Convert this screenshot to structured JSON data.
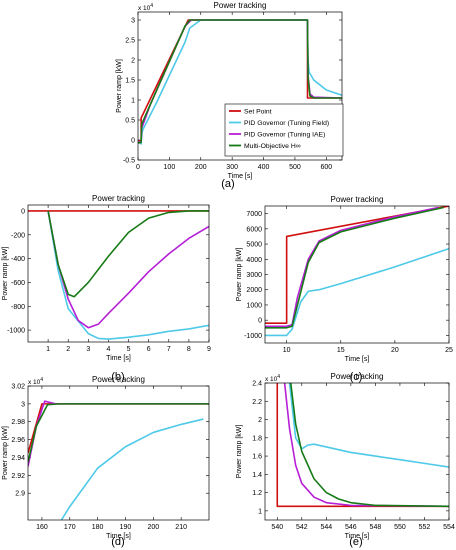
{
  "colors": {
    "set_point": "#d01010",
    "tuning_field": "#4ec9e8",
    "tuning_iae": "#b61fd6",
    "multi_objective": "#167a16"
  },
  "chart_data": [
    {
      "id": "a",
      "type": "line",
      "caption": "(a)",
      "title": "Power tracking",
      "xlabel": "Time [s]",
      "ylabel": "Power ramp [kW]",
      "exponent_label": "x 10^4",
      "xlim": [
        0,
        650
      ],
      "ylim": [
        -0.5,
        3.2
      ],
      "xticks": [
        0,
        100,
        200,
        300,
        400,
        500,
        600
      ],
      "yticks": [
        -0.5,
        0,
        0.5,
        1,
        1.5,
        2,
        2.5,
        3
      ],
      "ytick_labels": [
        "-0.5",
        "0",
        "0.5",
        "1",
        "1.5",
        "2",
        "2.5",
        "3"
      ],
      "legend": {
        "position": "bottom-right",
        "entries": [
          "Set Point",
          "PID Governor (Tuning Field)",
          "PID Governor (Tuning IAE)",
          "Multi-Objective H∞"
        ]
      },
      "series": [
        {
          "name": "Set Point",
          "color_key": "set_point",
          "points": [
            [
              0,
              -0.02
            ],
            [
              10,
              -0.02
            ],
            [
              10,
              0.55
            ],
            [
              160,
              3.0
            ],
            [
              540,
              3.0
            ],
            [
              540,
              1.05
            ],
            [
              650,
              1.05
            ]
          ]
        },
        {
          "name": "PID Governor (Tuning Field)",
          "color_key": "tuning_field",
          "points": [
            [
              0,
              -0.05
            ],
            [
              8,
              -0.05
            ],
            [
              10,
              -0.1
            ],
            [
              12,
              0.15
            ],
            [
              15,
              0.25
            ],
            [
              60,
              0.95
            ],
            [
              150,
              2.45
            ],
            [
              165,
              2.8
            ],
            [
              200,
              3.0
            ],
            [
              540,
              3.0
            ],
            [
              541,
              2.1
            ],
            [
              545,
              1.7
            ],
            [
              560,
              1.5
            ],
            [
              600,
              1.25
            ],
            [
              650,
              1.12
            ]
          ]
        },
        {
          "name": "PID Governor (Tuning IAE)",
          "color_key": "tuning_iae",
          "points": [
            [
              0,
              -0.06
            ],
            [
              8,
              -0.06
            ],
            [
              10,
              -0.05
            ],
            [
              12,
              0.3
            ],
            [
              40,
              0.9
            ],
            [
              150,
              2.85
            ],
            [
              170,
              3.0
            ],
            [
              540,
              3.0
            ],
            [
              542,
              1.6
            ],
            [
              548,
              1.15
            ],
            [
              560,
              1.07
            ],
            [
              650,
              1.05
            ]
          ]
        },
        {
          "name": "Multi-Objective H∞",
          "color_key": "multi_objective",
          "points": [
            [
              0,
              -0.07
            ],
            [
              8,
              -0.07
            ],
            [
              10,
              -0.05
            ],
            [
              12,
              0.4
            ],
            [
              40,
              0.9
            ],
            [
              150,
              2.85
            ],
            [
              165,
              3.0
            ],
            [
              540,
              3.0
            ],
            [
              542,
              1.55
            ],
            [
              548,
              1.1
            ],
            [
              560,
              1.05
            ],
            [
              650,
              1.05
            ]
          ]
        }
      ]
    },
    {
      "id": "b",
      "type": "line",
      "caption": "(b)",
      "title": "Power tracking",
      "xlabel": "Time [s]",
      "ylabel": "Power ramp [kW]",
      "xlim": [
        0,
        9
      ],
      "ylim": [
        -1100,
        50
      ],
      "xticks": [
        1,
        2,
        3,
        4,
        5,
        6,
        7,
        8,
        9
      ],
      "yticks": [
        0,
        -200,
        -400,
        -600,
        -800,
        -1000
      ],
      "ytick_labels": [
        "0",
        "-200",
        "-400",
        "-600",
        "-800",
        "-1000"
      ],
      "series": [
        {
          "color_key": "set_point",
          "points": [
            [
              0,
              0
            ],
            [
              9,
              0
            ]
          ]
        },
        {
          "color_key": "tuning_field",
          "points": [
            [
              1,
              0
            ],
            [
              1.5,
              -500
            ],
            [
              2,
              -820
            ],
            [
              3,
              -1030
            ],
            [
              3.5,
              -1070
            ],
            [
              4,
              -1075
            ],
            [
              5,
              -1060
            ],
            [
              6,
              -1040
            ],
            [
              7,
              -1010
            ],
            [
              8,
              -990
            ],
            [
              9,
              -960
            ]
          ]
        },
        {
          "color_key": "tuning_iae",
          "points": [
            [
              1,
              0
            ],
            [
              1.5,
              -450
            ],
            [
              2,
              -740
            ],
            [
              2.5,
              -920
            ],
            [
              3,
              -980
            ],
            [
              3.5,
              -950
            ],
            [
              4,
              -860
            ],
            [
              5,
              -690
            ],
            [
              6,
              -510
            ],
            [
              7,
              -360
            ],
            [
              8,
              -230
            ],
            [
              9,
              -130
            ]
          ]
        },
        {
          "color_key": "multi_objective",
          "points": [
            [
              1,
              0
            ],
            [
              1.5,
              -450
            ],
            [
              2,
              -700
            ],
            [
              2.3,
              -720
            ],
            [
              3,
              -600
            ],
            [
              4,
              -380
            ],
            [
              5,
              -180
            ],
            [
              6,
              -60
            ],
            [
              7,
              -12
            ],
            [
              8,
              0
            ],
            [
              9,
              0
            ]
          ]
        }
      ]
    },
    {
      "id": "c",
      "type": "line",
      "caption": "(c)",
      "title": "Power tracking",
      "xlabel": "Time [s]",
      "ylabel": "Power ramp [kW]",
      "xlim": [
        8,
        25
      ],
      "ylim": [
        -1500,
        7500
      ],
      "xticks": [
        10,
        15,
        20,
        25
      ],
      "yticks": [
        -1000,
        0,
        1000,
        2000,
        3000,
        4000,
        5000,
        6000,
        7000
      ],
      "ytick_labels": [
        "-1000",
        "0",
        "1000",
        "2000",
        "3000",
        "4000",
        "5000",
        "6000",
        "7000"
      ],
      "series": [
        {
          "color_key": "set_point",
          "points": [
            [
              8,
              -200
            ],
            [
              10,
              -200
            ],
            [
              10,
              5500
            ],
            [
              25,
              7500
            ]
          ]
        },
        {
          "color_key": "tuning_field",
          "points": [
            [
              8,
              -1000
            ],
            [
              10,
              -1000
            ],
            [
              10.5,
              -600
            ],
            [
              11.3,
              1200
            ],
            [
              12,
              1900
            ],
            [
              13,
              2000
            ],
            [
              15,
              2400
            ],
            [
              20,
              3500
            ],
            [
              25,
              4700
            ]
          ]
        },
        {
          "color_key": "tuning_iae",
          "points": [
            [
              8,
              -400
            ],
            [
              10,
              -400
            ],
            [
              10.5,
              -300
            ],
            [
              11,
              1500
            ],
            [
              12,
              4000
            ],
            [
              13,
              5200
            ],
            [
              15,
              5900
            ],
            [
              20,
              6800
            ],
            [
              24,
              7400
            ]
          ]
        },
        {
          "color_key": "multi_objective",
          "points": [
            [
              8,
              -500
            ],
            [
              10,
              -500
            ],
            [
              10.5,
              -400
            ],
            [
              11,
              1000
            ],
            [
              12,
              3800
            ],
            [
              13,
              5100
            ],
            [
              15,
              5800
            ],
            [
              20,
              6700
            ],
            [
              24.5,
              7400
            ]
          ]
        }
      ]
    },
    {
      "id": "d",
      "type": "line",
      "caption": "(d)",
      "title": "Power tracking",
      "xlabel": "Time [s]",
      "ylabel": "Power ramp [kW]",
      "exponent_label": "x 10^4",
      "xlim": [
        155,
        220
      ],
      "ylim": [
        2.87,
        3.02
      ],
      "xticks": [
        160,
        170,
        180,
        190,
        200,
        210
      ],
      "yticks": [
        2.9,
        2.92,
        2.94,
        2.96,
        2.98,
        3,
        3.02
      ],
      "ytick_labels": [
        "2.9",
        "2.92",
        "2.94",
        "2.96",
        "2.98",
        "3",
        "3.02"
      ],
      "series": [
        {
          "color_key": "set_point",
          "points": [
            [
              155,
              2.945
            ],
            [
              160,
              3.0
            ],
            [
              220,
              3.0
            ]
          ]
        },
        {
          "color_key": "tuning_field",
          "points": [
            [
              167,
              2.87
            ],
            [
              170,
              2.885
            ],
            [
              180,
              2.928
            ],
            [
              190,
              2.952
            ],
            [
              200,
              2.968
            ],
            [
              210,
              2.977
            ],
            [
              218,
              2.983
            ]
          ]
        },
        {
          "color_key": "tuning_iae",
          "points": [
            [
              155,
              2.93
            ],
            [
              158,
              2.975
            ],
            [
              161,
              3.003
            ],
            [
              165,
              3.0
            ],
            [
              220,
              3.0
            ]
          ]
        },
        {
          "color_key": "multi_objective",
          "points": [
            [
              155,
              2.935
            ],
            [
              158,
              2.975
            ],
            [
              162,
              2.999
            ],
            [
              166,
              3.0
            ],
            [
              220,
              3.0
            ]
          ]
        }
      ]
    },
    {
      "id": "e",
      "type": "line",
      "caption": "(e)",
      "title": "Power tracking",
      "xlabel": "Time [s]",
      "ylabel": "Power ramp [kW]",
      "exponent_label": "x 10^4",
      "xlim": [
        539,
        554
      ],
      "ylim": [
        0.9,
        2.4
      ],
      "xticks": [
        540,
        542,
        544,
        546,
        548,
        550,
        552,
        554
      ],
      "yticks": [
        1,
        1.2,
        1.4,
        1.6,
        1.8,
        2,
        2.2,
        2.4
      ],
      "ytick_labels": [
        "1",
        "1.2",
        "1.4",
        "1.6",
        "1.8",
        "2",
        "2.2",
        "2.4"
      ],
      "series": [
        {
          "color_key": "set_point",
          "points": [
            [
              540,
              2.4
            ],
            [
              540,
              1.05
            ],
            [
              554,
              1.05
            ]
          ]
        },
        {
          "color_key": "tuning_field",
          "points": [
            [
              541,
              2.4
            ],
            [
              541.5,
              1.8
            ],
            [
              542,
              1.68
            ],
            [
              542.5,
              1.72
            ],
            [
              543,
              1.73
            ],
            [
              544,
              1.7
            ],
            [
              546,
              1.64
            ],
            [
              548,
              1.6
            ],
            [
              550,
              1.56
            ],
            [
              552,
              1.52
            ],
            [
              554,
              1.48
            ]
          ]
        },
        {
          "color_key": "tuning_iae",
          "points": [
            [
              540.6,
              2.4
            ],
            [
              541,
              1.9
            ],
            [
              541.5,
              1.5
            ],
            [
              542,
              1.3
            ],
            [
              543,
              1.15
            ],
            [
              544,
              1.09
            ],
            [
              546,
              1.06
            ],
            [
              554,
              1.05
            ]
          ]
        },
        {
          "color_key": "multi_objective",
          "points": [
            [
              541.1,
              2.4
            ],
            [
              541.5,
              1.95
            ],
            [
              542,
              1.65
            ],
            [
              543,
              1.35
            ],
            [
              544,
              1.2
            ],
            [
              545,
              1.13
            ],
            [
              546,
              1.09
            ],
            [
              548,
              1.06
            ],
            [
              554,
              1.05
            ]
          ]
        }
      ]
    }
  ]
}
